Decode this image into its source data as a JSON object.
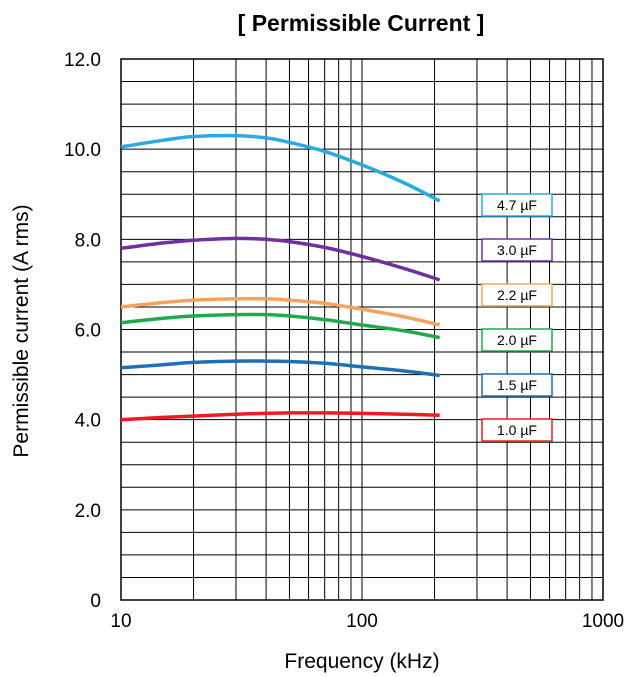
{
  "chart_data": {
    "type": "line",
    "title": "[ Permissible Current ]",
    "xlabel": "Frequency (kHz)",
    "ylabel": "Permissible current  (A rms)",
    "x_scale": "log",
    "xlim": [
      10,
      1000
    ],
    "ylim": [
      0,
      12
    ],
    "grid": true,
    "x_ticks": [
      {
        "value": 10,
        "label": "10"
      },
      {
        "value": 100,
        "label": "100"
      },
      {
        "value": 1000,
        "label": "1000"
      }
    ],
    "y_ticks": [
      {
        "value": 0,
        "label": "0"
      },
      {
        "value": 2,
        "label": "2.0"
      },
      {
        "value": 4,
        "label": "4.0"
      },
      {
        "value": 6,
        "label": "6.0"
      },
      {
        "value": 8,
        "label": "8.0"
      },
      {
        "value": 10,
        "label": "10.0"
      },
      {
        "value": 12,
        "label": "12.0"
      }
    ],
    "legend_placement": "right",
    "series": [
      {
        "name": "4.7 µF",
        "color": "#29abe2",
        "x": [
          10,
          15,
          20,
          30,
          40,
          50,
          70,
          100,
          150,
          210
        ],
        "y": [
          10.05,
          10.2,
          10.28,
          10.3,
          10.25,
          10.15,
          9.95,
          9.65,
          9.25,
          8.85
        ]
      },
      {
        "name": "3.0 µF",
        "color": "#7030a0",
        "x": [
          10,
          15,
          20,
          30,
          40,
          50,
          70,
          100,
          150,
          210
        ],
        "y": [
          7.8,
          7.92,
          7.98,
          8.02,
          8.0,
          7.95,
          7.82,
          7.62,
          7.35,
          7.1
        ]
      },
      {
        "name": "2.2 µF",
        "color": "#f4a460",
        "x": [
          10,
          15,
          20,
          30,
          40,
          50,
          70,
          100,
          150,
          210
        ],
        "y": [
          6.5,
          6.6,
          6.65,
          6.68,
          6.68,
          6.65,
          6.58,
          6.45,
          6.28,
          6.1
        ]
      },
      {
        "name": "2.0 µF",
        "color": "#22a94f",
        "x": [
          10,
          15,
          20,
          30,
          40,
          50,
          70,
          100,
          150,
          210
        ],
        "y": [
          6.15,
          6.25,
          6.3,
          6.33,
          6.33,
          6.3,
          6.22,
          6.1,
          5.97,
          5.82
        ]
      },
      {
        "name": "1.5 µF",
        "color": "#1f6fb4",
        "x": [
          10,
          15,
          20,
          30,
          40,
          50,
          70,
          100,
          150,
          210
        ],
        "y": [
          5.15,
          5.22,
          5.27,
          5.3,
          5.3,
          5.29,
          5.25,
          5.17,
          5.08,
          4.98
        ]
      },
      {
        "name": "1.0 µF",
        "color": "#ed1c24",
        "x": [
          10,
          15,
          20,
          30,
          40,
          50,
          70,
          100,
          150,
          210
        ],
        "y": [
          4.0,
          4.05,
          4.08,
          4.12,
          4.14,
          4.15,
          4.15,
          4.14,
          4.12,
          4.1
        ]
      }
    ]
  }
}
